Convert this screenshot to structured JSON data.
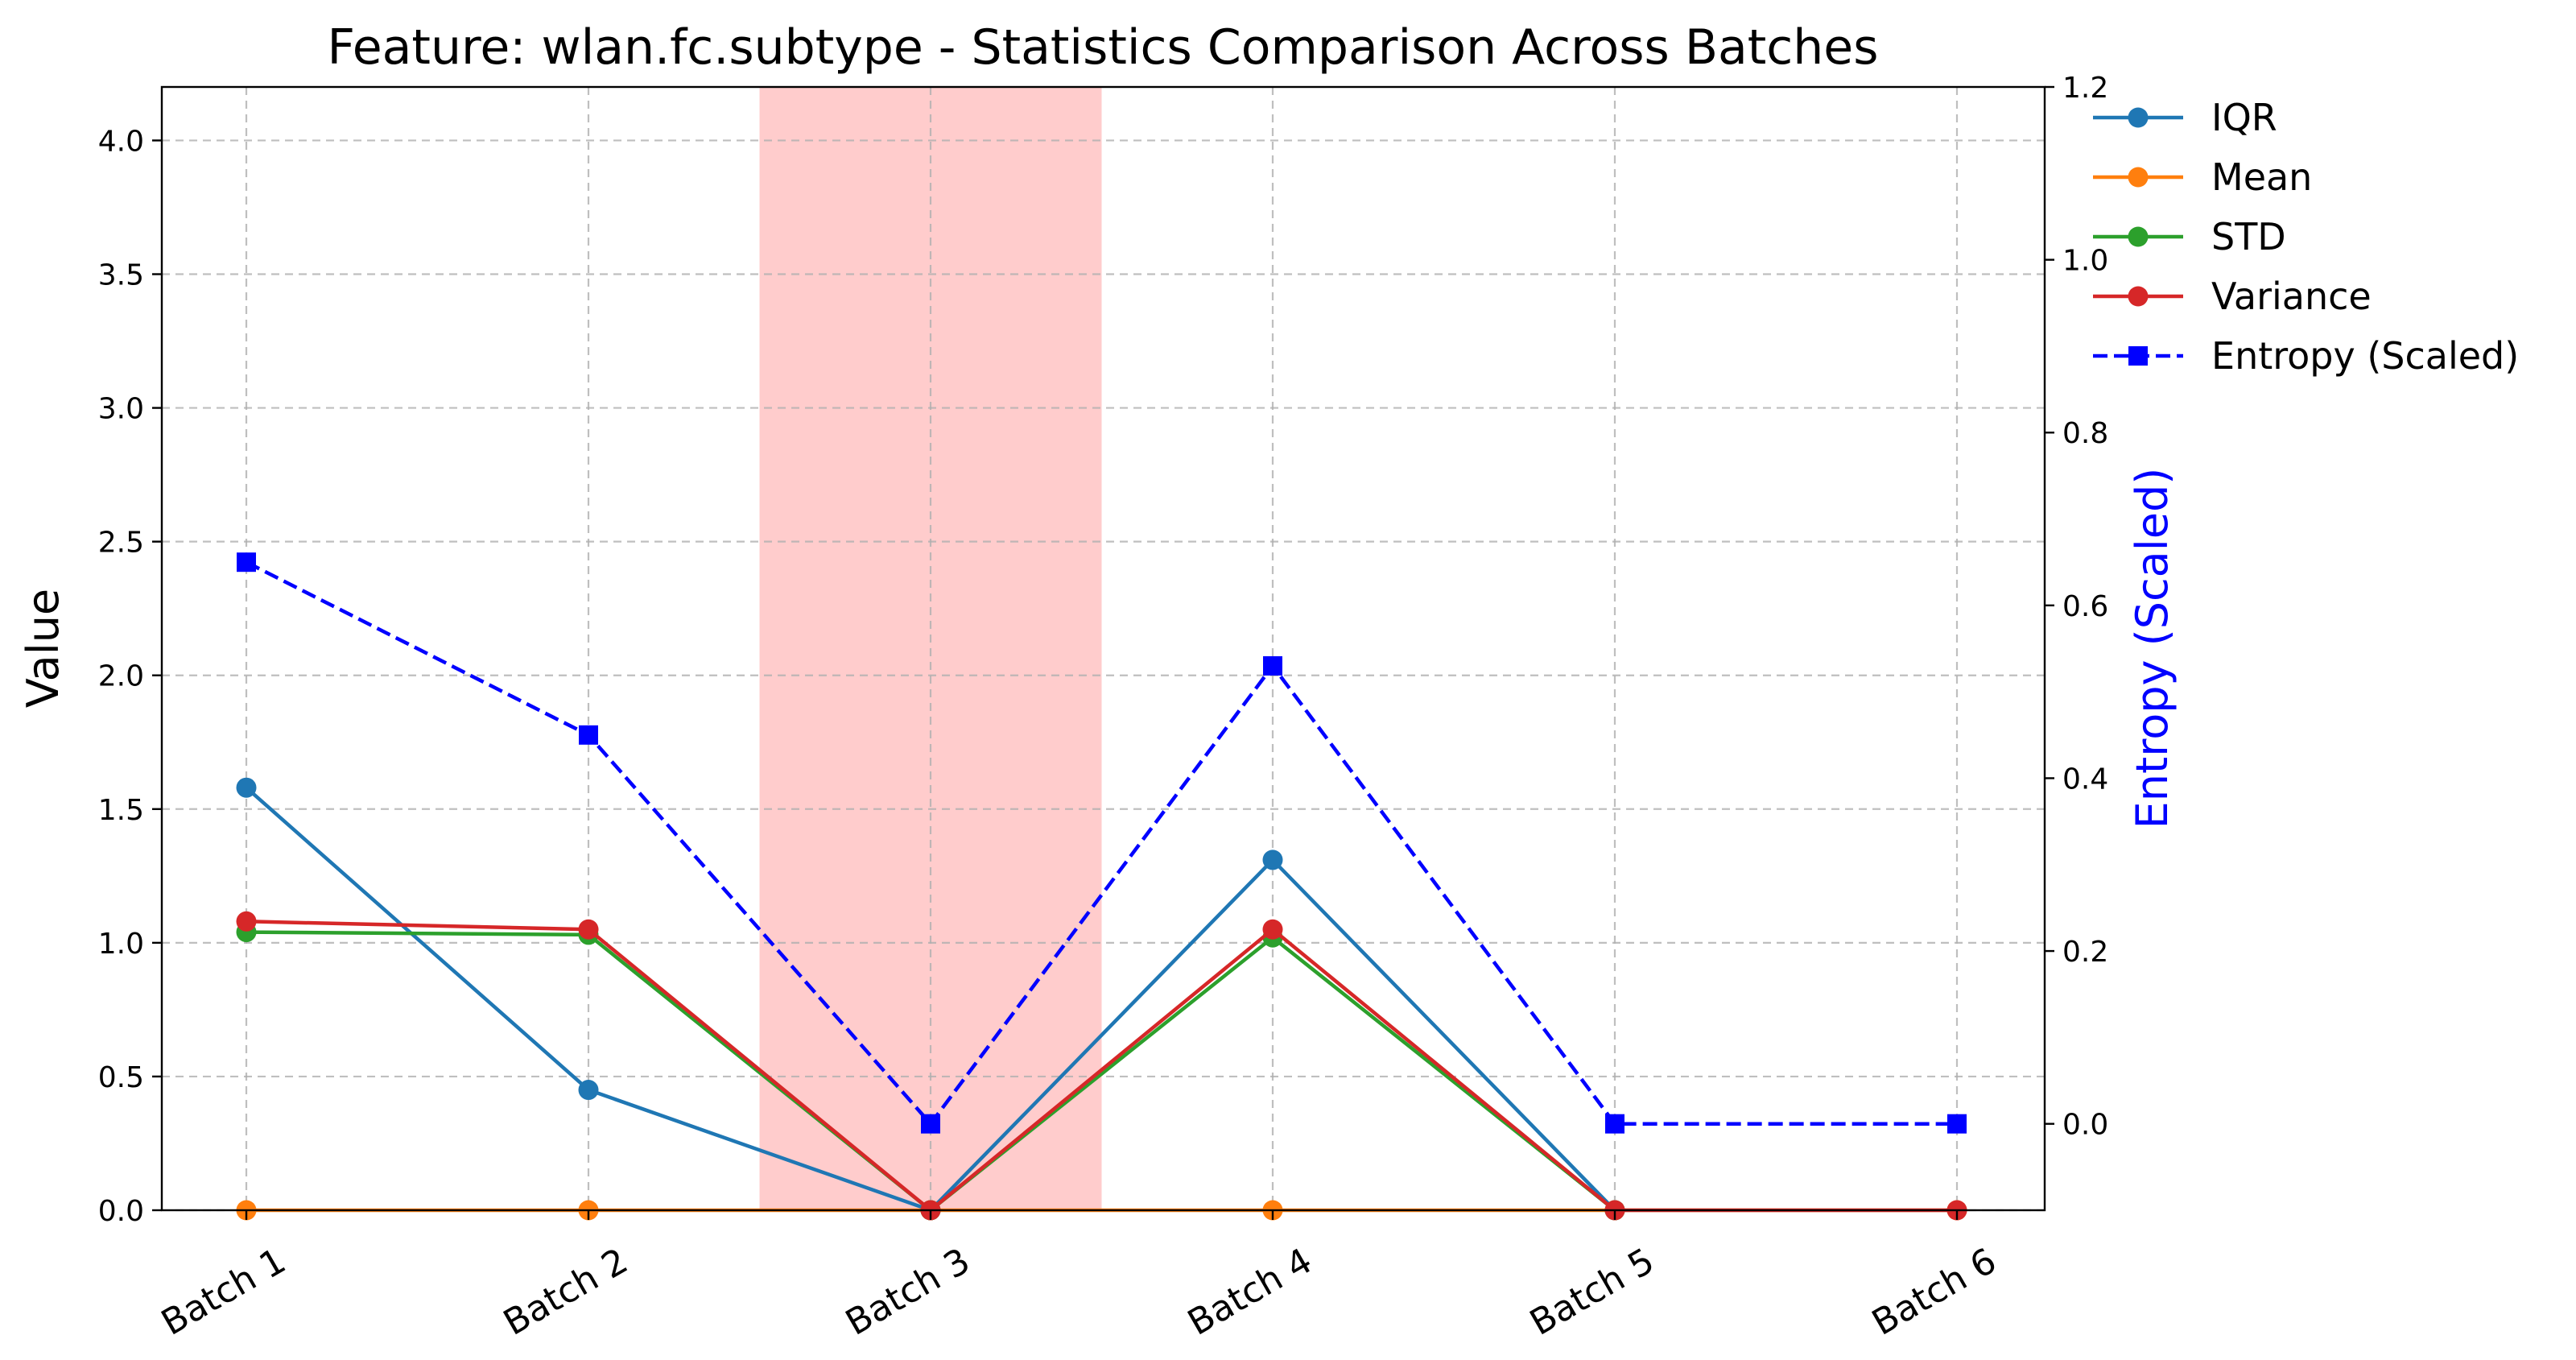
{
  "chart_data": {
    "type": "line",
    "title": "Feature: wlan.fc.subtype - Statistics Comparison Across Batches",
    "xlabel": "",
    "ylabel": "Value",
    "y2label": "Entropy (Scaled)",
    "categories": [
      "Batch 1",
      "Batch 2",
      "Batch 3",
      "Batch 4",
      "Batch 5",
      "Batch 6"
    ],
    "ylim": [
      0,
      4.2
    ],
    "y2lim": [
      -0.1,
      1.2
    ],
    "yticks": [
      "0.0",
      "0.5",
      "1.0",
      "1.5",
      "2.0",
      "2.5",
      "3.0",
      "3.5",
      "4.0"
    ],
    "y2ticks": [
      "0.0",
      "0.2",
      "0.4",
      "0.6",
      "0.8",
      "1.0",
      "1.2"
    ],
    "grid": true,
    "legend_position": "right-top",
    "highlight": {
      "category": "Batch 3",
      "color": "#ff9999"
    },
    "series": [
      {
        "name": "IQR",
        "axis": "left",
        "color": "#1f77b4",
        "marker": "circle",
        "dash": "solid",
        "values": [
          1.58,
          0.45,
          0.0,
          1.31,
          0.0,
          null
        ]
      },
      {
        "name": "Mean",
        "axis": "left",
        "color": "#ff7f0e",
        "marker": "circle",
        "dash": "solid",
        "values": [
          0.0,
          0.0,
          0.0,
          0.0,
          0.0,
          0.0
        ]
      },
      {
        "name": "STD",
        "axis": "left",
        "color": "#2ca02c",
        "marker": "circle",
        "dash": "solid",
        "values": [
          1.04,
          1.03,
          0.0,
          1.02,
          0.0,
          null
        ]
      },
      {
        "name": "Variance",
        "axis": "left",
        "color": "#d62728",
        "marker": "circle",
        "dash": "solid",
        "values": [
          1.08,
          1.05,
          0.0,
          1.05,
          0.0,
          0.0
        ]
      },
      {
        "name": "Entropy (Scaled)",
        "axis": "right",
        "color": "#0000ff",
        "marker": "square",
        "dash": "dashed",
        "values": [
          0.65,
          0.45,
          0.0,
          0.53,
          0.0,
          0.0
        ]
      }
    ]
  }
}
